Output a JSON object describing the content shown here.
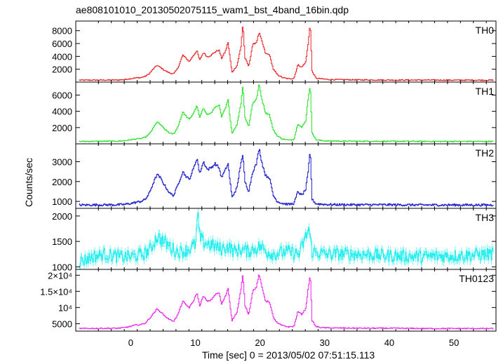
{
  "chart_data": {
    "type": "line",
    "title": "ae808101010_20130502075115_wam1_bst_4band_16bin.qdp",
    "xlabel": "Time [sec] 0 = 2013/05/02 07:51:15.113",
    "ylabel": "Counts/sec",
    "xlim": [
      -8.5,
      56.5
    ],
    "xticks": [
      0,
      10,
      20,
      30,
      40,
      50
    ],
    "xtick_labels": [
      "0",
      "10",
      "20",
      "30",
      "40",
      "50"
    ],
    "grid": false,
    "legend": "none",
    "panels": [
      {
        "name": "TH0",
        "color": "#e8262a",
        "ylim": [
          0,
          9500
        ],
        "yticks": [
          2000,
          4000,
          6000,
          8000
        ],
        "ytick_labels": [
          "2000",
          "4000",
          "6000",
          "8000"
        ],
        "baseline": 300,
        "noise": 80,
        "x": [
          -8,
          -2,
          -1,
          0,
          0.7,
          1.5,
          2.2,
          2.8,
          3.4,
          4.0,
          4.5,
          5.2,
          6.0,
          6.6,
          7.2,
          8.0,
          8.4,
          9.0,
          9.6,
          10.2,
          10.6,
          11.2,
          11.8,
          12.4,
          13.0,
          13.6,
          14.0,
          14.6,
          15.0,
          15.6,
          16.4,
          17.0,
          17.3,
          17.6,
          18.2,
          18.8,
          19.4,
          19.8,
          20.2,
          20.8,
          21.4,
          22.0,
          22.6,
          23.4,
          24.4,
          25.2,
          25.8,
          26.4,
          27.0,
          27.4,
          27.7,
          28.0,
          28.6,
          29.5,
          30.5,
          35,
          40,
          45,
          50,
          56
        ],
        "y": [
          300,
          320,
          400,
          550,
          650,
          700,
          900,
          1300,
          2000,
          2600,
          2300,
          1800,
          1400,
          1300,
          2100,
          4200,
          3800,
          3200,
          4100,
          4900,
          3400,
          4600,
          3900,
          4200,
          4700,
          5000,
          3700,
          4800,
          6200,
          1500,
          2600,
          5500,
          9200,
          3800,
          2400,
          5800,
          6200,
          7700,
          6500,
          4400,
          4300,
          2000,
          1200,
          700,
          500,
          600,
          2700,
          2300,
          3100,
          6000,
          9300,
          1700,
          600,
          500,
          400,
          350,
          320,
          320,
          300,
          300
        ]
      },
      {
        "name": "TH1",
        "color": "#28e228",
        "ylim": [
          0,
          7600
        ],
        "yticks": [
          2000,
          4000,
          6000
        ],
        "ytick_labels": [
          "2000",
          "4000",
          "6000"
        ],
        "baseline": 300,
        "noise": 60,
        "x": [
          -8,
          -2,
          -1,
          0,
          0.7,
          1.5,
          2.2,
          2.8,
          3.4,
          4.0,
          4.5,
          5.2,
          6.0,
          6.6,
          7.2,
          8.0,
          8.4,
          9.0,
          9.6,
          10.2,
          10.6,
          11.2,
          11.8,
          12.4,
          13.0,
          13.6,
          14.0,
          14.6,
          15.0,
          15.6,
          16.4,
          17.0,
          17.3,
          17.6,
          18.2,
          18.8,
          19.4,
          19.8,
          20.2,
          20.8,
          21.4,
          22.0,
          22.6,
          23.4,
          24.4,
          25.2,
          25.8,
          26.4,
          27.0,
          27.4,
          27.7,
          28.0,
          28.6,
          29.5,
          30.5,
          35,
          40,
          45,
          50,
          56
        ],
        "y": [
          300,
          320,
          400,
          500,
          600,
          650,
          800,
          1200,
          1900,
          2700,
          2400,
          1800,
          1300,
          1200,
          2000,
          3900,
          3500,
          3000,
          3700,
          4700,
          3200,
          4400,
          3600,
          3800,
          4500,
          4800,
          3300,
          4400,
          5400,
          1300,
          2400,
          5000,
          7300,
          3300,
          2100,
          5000,
          5500,
          7400,
          5600,
          3800,
          3600,
          1700,
          1000,
          600,
          450,
          550,
          2500,
          2000,
          2800,
          5600,
          7300,
          1400,
          500,
          400,
          350,
          320,
          310,
          300,
          300,
          300
        ]
      },
      {
        "name": "TH2",
        "color": "#2222cc",
        "ylim": [
          650,
          3900
        ],
        "yticks": [
          1000,
          2000,
          3000
        ],
        "ytick_labels": [
          "1000",
          "2000",
          "3000"
        ],
        "baseline": 820,
        "noise": 45,
        "x": [
          -8,
          -2,
          -1,
          0,
          0.7,
          1.5,
          2.2,
          2.8,
          3.4,
          4.0,
          4.5,
          5.2,
          6.0,
          6.6,
          7.2,
          8.0,
          8.4,
          9.0,
          9.6,
          10.2,
          10.6,
          11.2,
          11.8,
          12.4,
          13.0,
          13.6,
          14.0,
          14.6,
          15.0,
          15.6,
          16.4,
          17.0,
          17.3,
          17.6,
          18.2,
          18.8,
          19.4,
          19.8,
          20.2,
          20.8,
          21.4,
          22.0,
          22.6,
          23.4,
          24.4,
          25.2,
          25.8,
          26.4,
          27.0,
          27.4,
          27.7,
          28.0,
          28.6,
          29.5,
          30.5,
          35,
          40,
          45,
          50,
          56
        ],
        "y": [
          820,
          830,
          850,
          900,
          950,
          1000,
          1100,
          1400,
          1900,
          2350,
          2200,
          1800,
          1400,
          1300,
          1800,
          2500,
          2300,
          2100,
          2600,
          3200,
          2400,
          3000,
          2600,
          2700,
          2900,
          2700,
          2200,
          2600,
          2900,
          1200,
          1700,
          3000,
          3300,
          2000,
          1500,
          2500,
          2900,
          3700,
          3000,
          2300,
          2200,
          1300,
          1000,
          900,
          850,
          900,
          1500,
          1300,
          1600,
          2500,
          3600,
          1100,
          880,
          860,
          840,
          830,
          830,
          820,
          820,
          820
        ]
      },
      {
        "name": "TH3",
        "color": "#22eeee",
        "ylim": [
          950,
          2150
        ],
        "yticks": [
          1000,
          1500,
          2000
        ],
        "ytick_labels": [
          "1000",
          "1500",
          "2000"
        ],
        "baseline": 1200,
        "noise": 90,
        "x": [
          -8,
          -6,
          -4,
          -2,
          0,
          2,
          3,
          4,
          4.5,
          5,
          6,
          7,
          8,
          9,
          10,
          10.3,
          10.6,
          11,
          12,
          13,
          14,
          15,
          16,
          17,
          18,
          19,
          20,
          21,
          22,
          24,
          26,
          27.5,
          28,
          30,
          35,
          40,
          45,
          50,
          56
        ],
        "y": [
          1100,
          1200,
          1250,
          1200,
          1200,
          1250,
          1350,
          1600,
          1550,
          1500,
          1400,
          1300,
          1300,
          1350,
          1450,
          2050,
          1600,
          1500,
          1450,
          1400,
          1350,
          1400,
          1300,
          1350,
          1300,
          1350,
          1400,
          1300,
          1250,
          1300,
          1250,
          1750,
          1300,
          1250,
          1250,
          1220,
          1200,
          1220,
          1250
        ]
      },
      {
        "name": "TH0123",
        "color": "#ee22ee",
        "ylim": [
          2700,
          21800
        ],
        "yticks": [
          5000,
          10000,
          15000,
          20000
        ],
        "ytick_labels": [
          "5000",
          "10⁴",
          "1.5×10⁴",
          "2×10⁴"
        ],
        "baseline": 3500,
        "noise": 150,
        "x": [
          -8,
          -2,
          -1,
          0,
          0.7,
          1.5,
          2.2,
          2.8,
          3.4,
          4.0,
          4.5,
          5.2,
          6.0,
          6.6,
          7.2,
          8.0,
          8.4,
          9.0,
          9.6,
          10.2,
          10.6,
          11.2,
          11.8,
          12.4,
          13.0,
          13.6,
          14.0,
          14.6,
          15.0,
          15.6,
          16.4,
          17.0,
          17.3,
          17.6,
          18.2,
          18.8,
          19.4,
          19.8,
          20.2,
          20.8,
          21.4,
          22.0,
          22.6,
          23.4,
          24.4,
          25.2,
          25.8,
          26.4,
          27.0,
          27.4,
          27.7,
          28.0,
          28.6,
          29.5,
          30.5,
          35,
          40,
          45,
          50,
          56
        ],
        "y": [
          3500,
          3600,
          3800,
          4200,
          4600,
          4700,
          5200,
          6500,
          8000,
          9500,
          8800,
          7400,
          6200,
          5800,
          7600,
          12000,
          11000,
          10000,
          11800,
          14600,
          10500,
          13600,
          11800,
          12400,
          14000,
          14600,
          11000,
          13600,
          16000,
          6000,
          8600,
          15600,
          20500,
          10800,
          7800,
          15000,
          16400,
          20400,
          16600,
          12000,
          11800,
          7000,
          5200,
          4400,
          4000,
          4200,
          8800,
          7900,
          9600,
          15800,
          20500,
          6000,
          4100,
          3800,
          3700,
          3600,
          3600,
          3500,
          3500,
          3500
        ]
      }
    ]
  }
}
